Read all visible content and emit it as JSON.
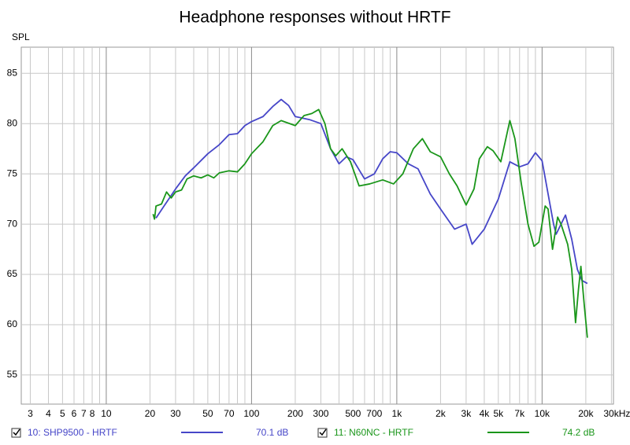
{
  "chart_data": {
    "type": "line",
    "title": "Headphone responses without HRTF",
    "y_label": "SPL",
    "xlog": true,
    "grid": true,
    "xlim": [
      2.6,
      31000
    ],
    "ylim": [
      52.1,
      87.6
    ],
    "xticks": [
      3,
      4,
      5,
      6,
      7,
      8,
      10,
      20,
      30,
      50,
      70,
      100,
      200,
      300,
      500,
      700,
      {
        "value": 1000,
        "label": "1k"
      },
      {
        "value": 2000,
        "label": "2k"
      },
      {
        "value": 3000,
        "label": "3k"
      },
      {
        "value": 4000,
        "label": "4k"
      },
      {
        "value": 5000,
        "label": "5k"
      },
      {
        "value": 7000,
        "label": "7k"
      },
      {
        "value": 10000,
        "label": "10k"
      },
      {
        "value": 20000,
        "label": "20k"
      },
      {
        "value": 30000,
        "label": "30kHz"
      }
    ],
    "xminor": [
      9,
      40,
      60,
      80,
      90,
      400,
      600,
      800,
      900,
      6000,
      8000,
      9000
    ],
    "yticks": [
      55,
      60,
      65,
      70,
      75,
      80,
      85
    ],
    "series": [
      {
        "name": "10: SHP9500 - HRTF",
        "legend_value": "70.1 dB",
        "color": "#4646c8",
        "x": [
          22,
          25,
          30,
          35,
          40,
          50,
          60,
          70,
          80,
          90,
          100,
          120,
          140,
          160,
          180,
          200,
          250,
          300,
          350,
          400,
          450,
          500,
          600,
          700,
          800,
          900,
          1000,
          1200,
          1400,
          1700,
          2000,
          2500,
          3000,
          3300,
          4000,
          5000,
          6000,
          7000,
          8000,
          9000,
          10000,
          11000,
          12000,
          12500,
          13500,
          14500,
          16000,
          17500,
          18800,
          20500
        ],
        "values": [
          70.6,
          71.8,
          73.5,
          74.8,
          75.6,
          77.0,
          77.9,
          78.9,
          79.0,
          79.8,
          80.2,
          80.7,
          81.7,
          82.4,
          81.8,
          80.7,
          80.4,
          80.0,
          77.5,
          76.0,
          76.7,
          76.4,
          74.5,
          75.0,
          76.5,
          77.2,
          77.1,
          76.0,
          75.5,
          73.0,
          71.5,
          69.5,
          70.0,
          68.0,
          69.5,
          72.5,
          76.2,
          75.7,
          76.0,
          77.1,
          76.3,
          73.0,
          70.0,
          69.0,
          70.0,
          70.9,
          68.5,
          65.5,
          64.4,
          64.1
        ]
      },
      {
        "name": "11: N60NC - HRTF",
        "legend_value": "74.2 dB",
        "color": "#1a961a",
        "x": [
          21,
          21.5,
          22,
          24,
          26,
          28,
          30,
          33,
          36,
          40,
          45,
          50,
          55,
          60,
          70,
          80,
          90,
          100,
          120,
          140,
          160,
          200,
          230,
          260,
          290,
          320,
          350,
          380,
          420,
          480,
          550,
          650,
          800,
          950,
          1100,
          1300,
          1500,
          1700,
          2000,
          2300,
          2600,
          3000,
          3400,
          3700,
          4200,
          4600,
          5200,
          6000,
          6500,
          7200,
          8000,
          8800,
          9500,
          10500,
          11000,
          11800,
          12800,
          13500,
          15000,
          16000,
          17000,
          17800,
          18500,
          19500,
          20500
        ],
        "values": [
          71.0,
          70.5,
          71.8,
          72.0,
          73.2,
          72.6,
          73.2,
          73.4,
          74.5,
          74.8,
          74.6,
          74.9,
          74.6,
          75.1,
          75.3,
          75.2,
          76.0,
          77.0,
          78.2,
          79.8,
          80.3,
          79.8,
          80.8,
          81.0,
          81.4,
          80.0,
          77.5,
          76.8,
          77.5,
          76.2,
          73.8,
          74.0,
          74.4,
          74.0,
          75.0,
          77.5,
          78.5,
          77.2,
          76.7,
          75.0,
          73.8,
          71.9,
          73.5,
          76.5,
          77.7,
          77.3,
          76.2,
          80.3,
          78.5,
          74.0,
          70.0,
          67.8,
          68.2,
          71.8,
          71.5,
          67.5,
          70.7,
          70.0,
          68.0,
          65.5,
          60.2,
          63.5,
          65.8,
          62.0,
          58.7
        ]
      }
    ]
  }
}
